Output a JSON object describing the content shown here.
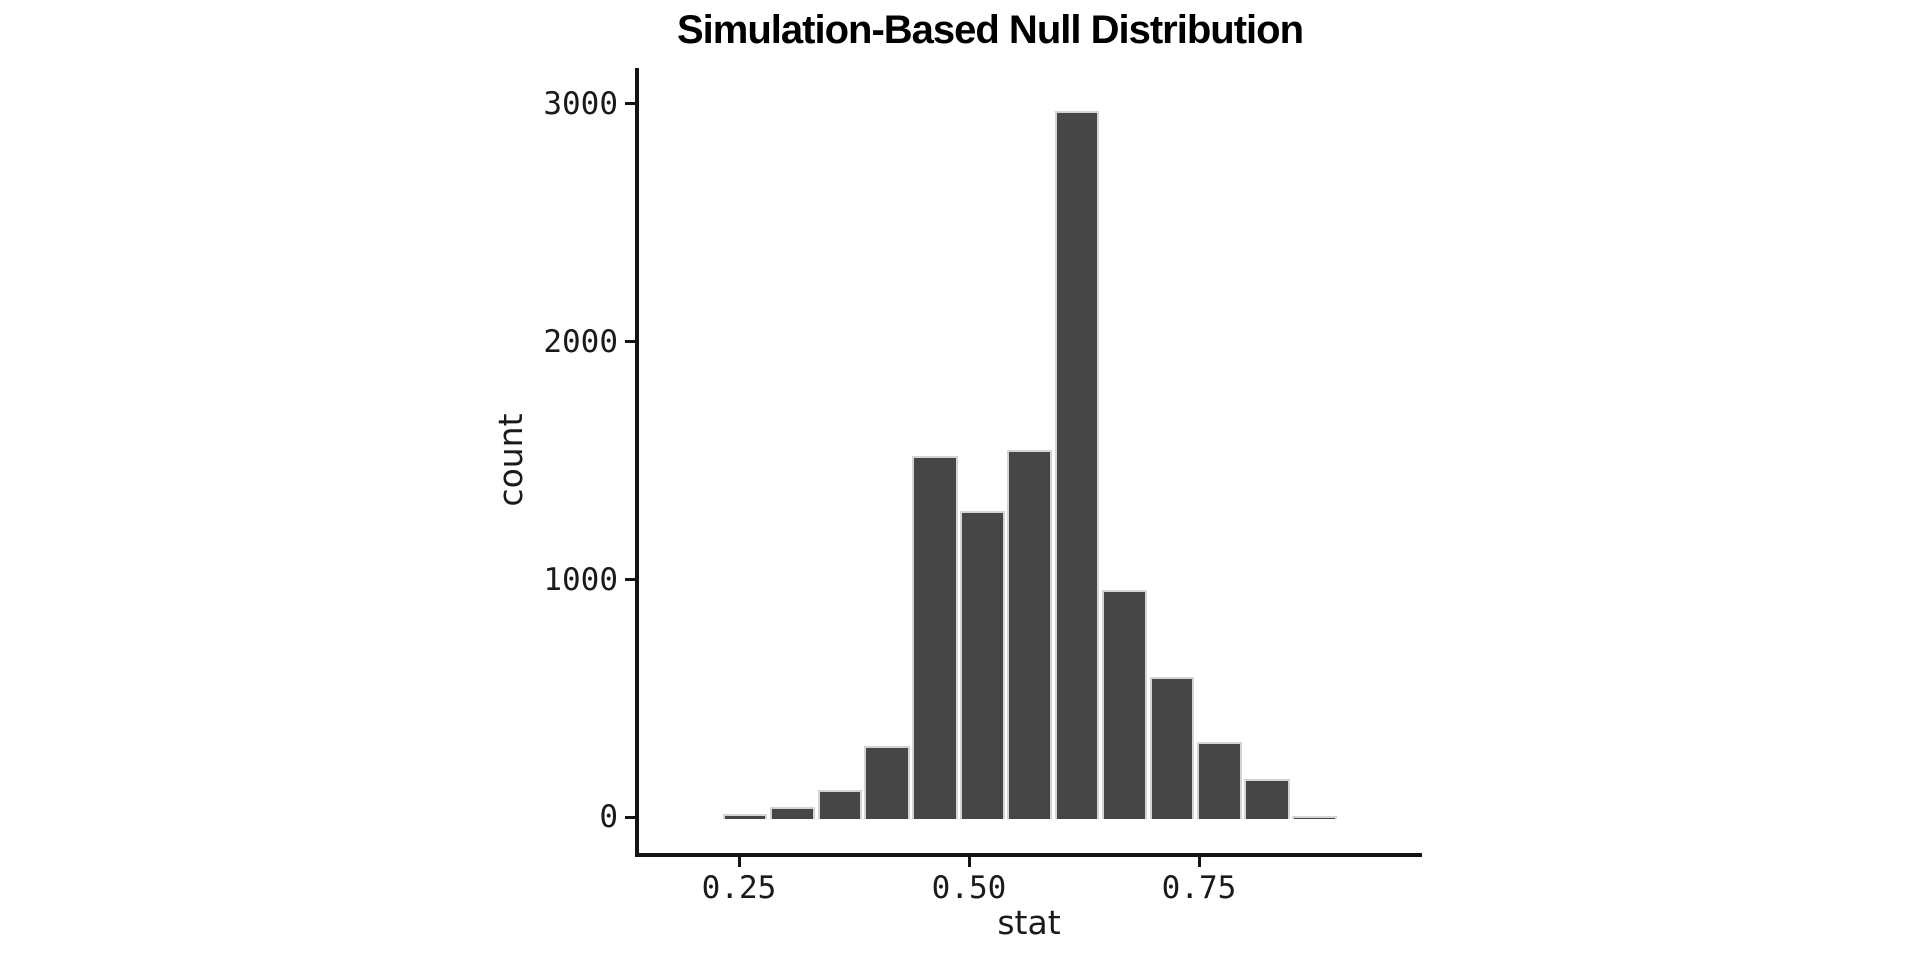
{
  "title": "Simulation-Based Null Distribution",
  "chart_data": {
    "type": "bar",
    "subtype": "histogram",
    "title": "Simulation-Based Null Distribution",
    "xlabel": "stat",
    "ylabel": "count",
    "bin_edges": [
      0.231,
      0.282,
      0.334,
      0.385,
      0.437,
      0.489,
      0.54,
      0.592,
      0.643,
      0.695,
      0.746,
      0.798,
      0.85,
      0.901
    ],
    "counts": [
      15,
      45,
      115,
      300,
      1520,
      1290,
      1545,
      2970,
      955,
      590,
      315,
      160,
      5
    ],
    "x_ticks": [
      {
        "value": 0.25,
        "label": "0.25"
      },
      {
        "value": 0.5,
        "label": "0.50"
      },
      {
        "value": 0.75,
        "label": "0.75"
      }
    ],
    "y_ticks": [
      {
        "value": 0,
        "label": "0"
      },
      {
        "value": 1000,
        "label": "1000"
      },
      {
        "value": 2000,
        "label": "2000"
      },
      {
        "value": 3000,
        "label": "3000"
      }
    ],
    "xlim": [
      0.139,
      0.992
    ],
    "ylim": [
      -150,
      3150
    ],
    "grid": false,
    "legend": false,
    "colors": {
      "bar_fill": "#464646",
      "bar_border": "#d4d4d4",
      "axis_line": "#141414",
      "text": "#1a1a1a",
      "background": "#ffffff"
    }
  }
}
